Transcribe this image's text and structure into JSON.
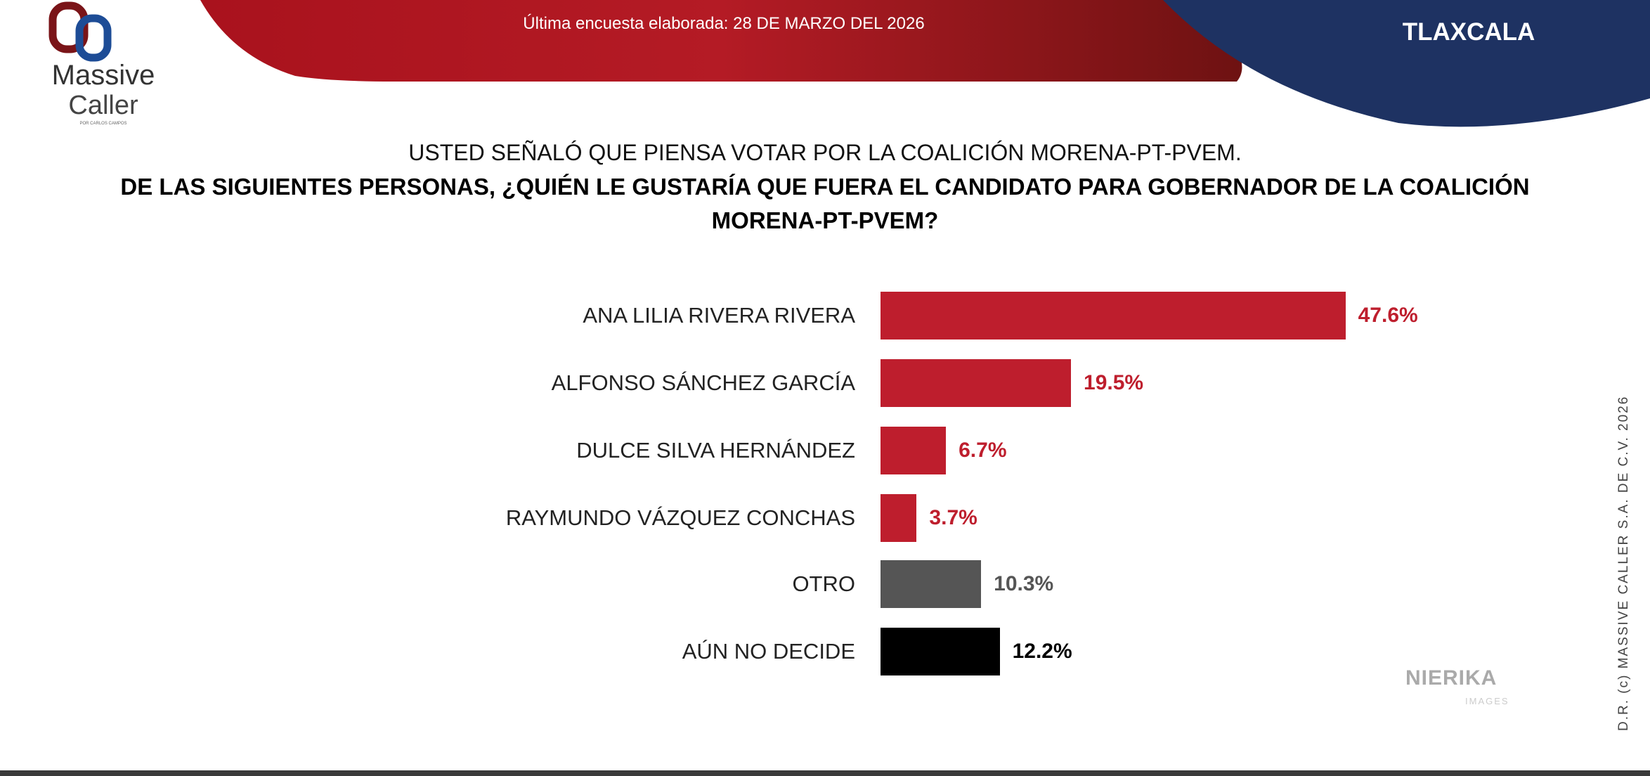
{
  "header": {
    "date_text": "Última encuesta elaborada: 28 DE MARZO DEL 2026",
    "region": "TLAXCALA",
    "colors": {
      "red": "#b01c24",
      "blue": "#1e3262"
    }
  },
  "logo": {
    "line1": "Massive",
    "line2": "Caller",
    "tagline": "POR CARLOS CAMPOS"
  },
  "question": {
    "line1": "USTED SEÑALÓ QUE PIENSA VOTAR POR LA COALICIÓN MORENA-PT-PVEM.",
    "line2": "DE LAS SIGUIENTES PERSONAS, ¿QUIÉN LE GUSTARÍA QUE FUERA EL CANDIDATO PARA GOBERNADOR DE LA COALICIÓN MORENA-PT-PVEM?"
  },
  "chart_data": {
    "type": "bar",
    "orientation": "horizontal",
    "categories": [
      "ANA LILIA RIVERA RIVERA",
      "ALFONSO SÁNCHEZ GARCÍA",
      "DULCE SILVA HERNÁNDEZ",
      "RAYMUNDO VÁZQUEZ CONCHAS",
      "OTRO",
      "AÚN NO DECIDE"
    ],
    "values": [
      47.6,
      19.5,
      6.7,
      3.7,
      10.3,
      12.2
    ],
    "labels": [
      "47.6%",
      "19.5%",
      "6.7%",
      "3.7%",
      "10.3%",
      "12.2%"
    ],
    "colors": [
      "#be1e2d",
      "#be1e2d",
      "#be1e2d",
      "#be1e2d",
      "#555555",
      "#000000"
    ],
    "label_colors": [
      "#be1e2d",
      "#be1e2d",
      "#be1e2d",
      "#be1e2d",
      "#555555",
      "#000000"
    ],
    "grid": false
  },
  "watermark": {
    "brand": "NIERIKA",
    "sub": "IMAGES"
  },
  "side_text": "D.R. (c) MASSIVE CALLER S.A. DE C.V. 2026"
}
